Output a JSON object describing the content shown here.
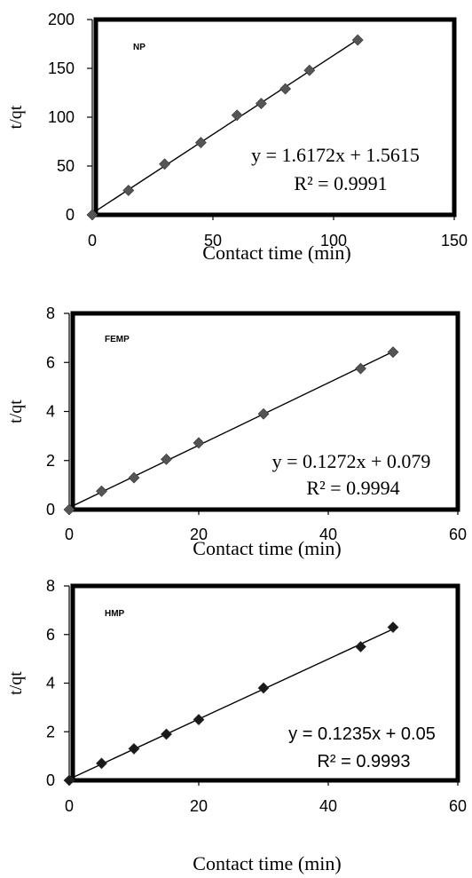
{
  "chart_data": [
    {
      "type": "scatter",
      "panel_label": "NP",
      "title": "",
      "xlabel": "Contact time (min)",
      "ylabel": "t/qt",
      "xlim": [
        0,
        150
      ],
      "ylim": [
        0,
        200
      ],
      "xticks": [
        "0",
        "50",
        "100",
        "150"
      ],
      "yticks": [
        "0",
        "50",
        "100",
        "150",
        "200"
      ],
      "grid": false,
      "marker_color": "#555555",
      "series": [
        {
          "x": [
            0,
            15,
            30,
            45,
            60,
            70,
            80,
            90,
            110
          ],
          "y": [
            0,
            25,
            52,
            74,
            102,
            114,
            129,
            148,
            179
          ]
        }
      ],
      "trendline": {
        "slope": 1.6172,
        "intercept": 1.5615
      },
      "equation": "y = 1.6172x + 1.5615",
      "r2": "R² = 0.9991"
    },
    {
      "type": "scatter",
      "panel_label": "FEMP",
      "title": "",
      "xlabel": "Contact time (min)",
      "ylabel": "t/qt",
      "xlim": [
        0,
        60
      ],
      "ylim": [
        0,
        8
      ],
      "xticks": [
        "0",
        "20",
        "40",
        "60"
      ],
      "yticks": [
        "0",
        "2",
        "4",
        "6",
        "8"
      ],
      "grid": false,
      "marker_color": "#555555",
      "series": [
        {
          "x": [
            0,
            5,
            10,
            15,
            20,
            30,
            45,
            50
          ],
          "y": [
            0,
            0.75,
            1.3,
            2.05,
            2.72,
            3.9,
            5.75,
            6.42
          ]
        }
      ],
      "trendline": {
        "slope": 0.1272,
        "intercept": 0.079
      },
      "equation": "y = 0.1272x + 0.079",
      "r2": "R² = 0.9994"
    },
    {
      "type": "scatter",
      "panel_label": "HMP",
      "title": "",
      "xlabel": "Contact time (min)",
      "ylabel": "t/qt",
      "xlim": [
        0,
        60
      ],
      "ylim": [
        0,
        8
      ],
      "xticks": [
        "0",
        "20",
        "40",
        "60"
      ],
      "yticks": [
        "0",
        "2",
        "4",
        "6",
        "8"
      ],
      "grid": false,
      "marker_color": "#1a1a1a",
      "series": [
        {
          "x": [
            0,
            5,
            10,
            15,
            20,
            30,
            45,
            50
          ],
          "y": [
            0,
            0.7,
            1.3,
            1.9,
            2.5,
            3.8,
            5.5,
            6.3
          ]
        }
      ],
      "trendline": {
        "slope": 0.1235,
        "intercept": 0.05
      },
      "equation": "y = 0.1235x + 0.05",
      "r2": "R² = 0.9993"
    }
  ]
}
